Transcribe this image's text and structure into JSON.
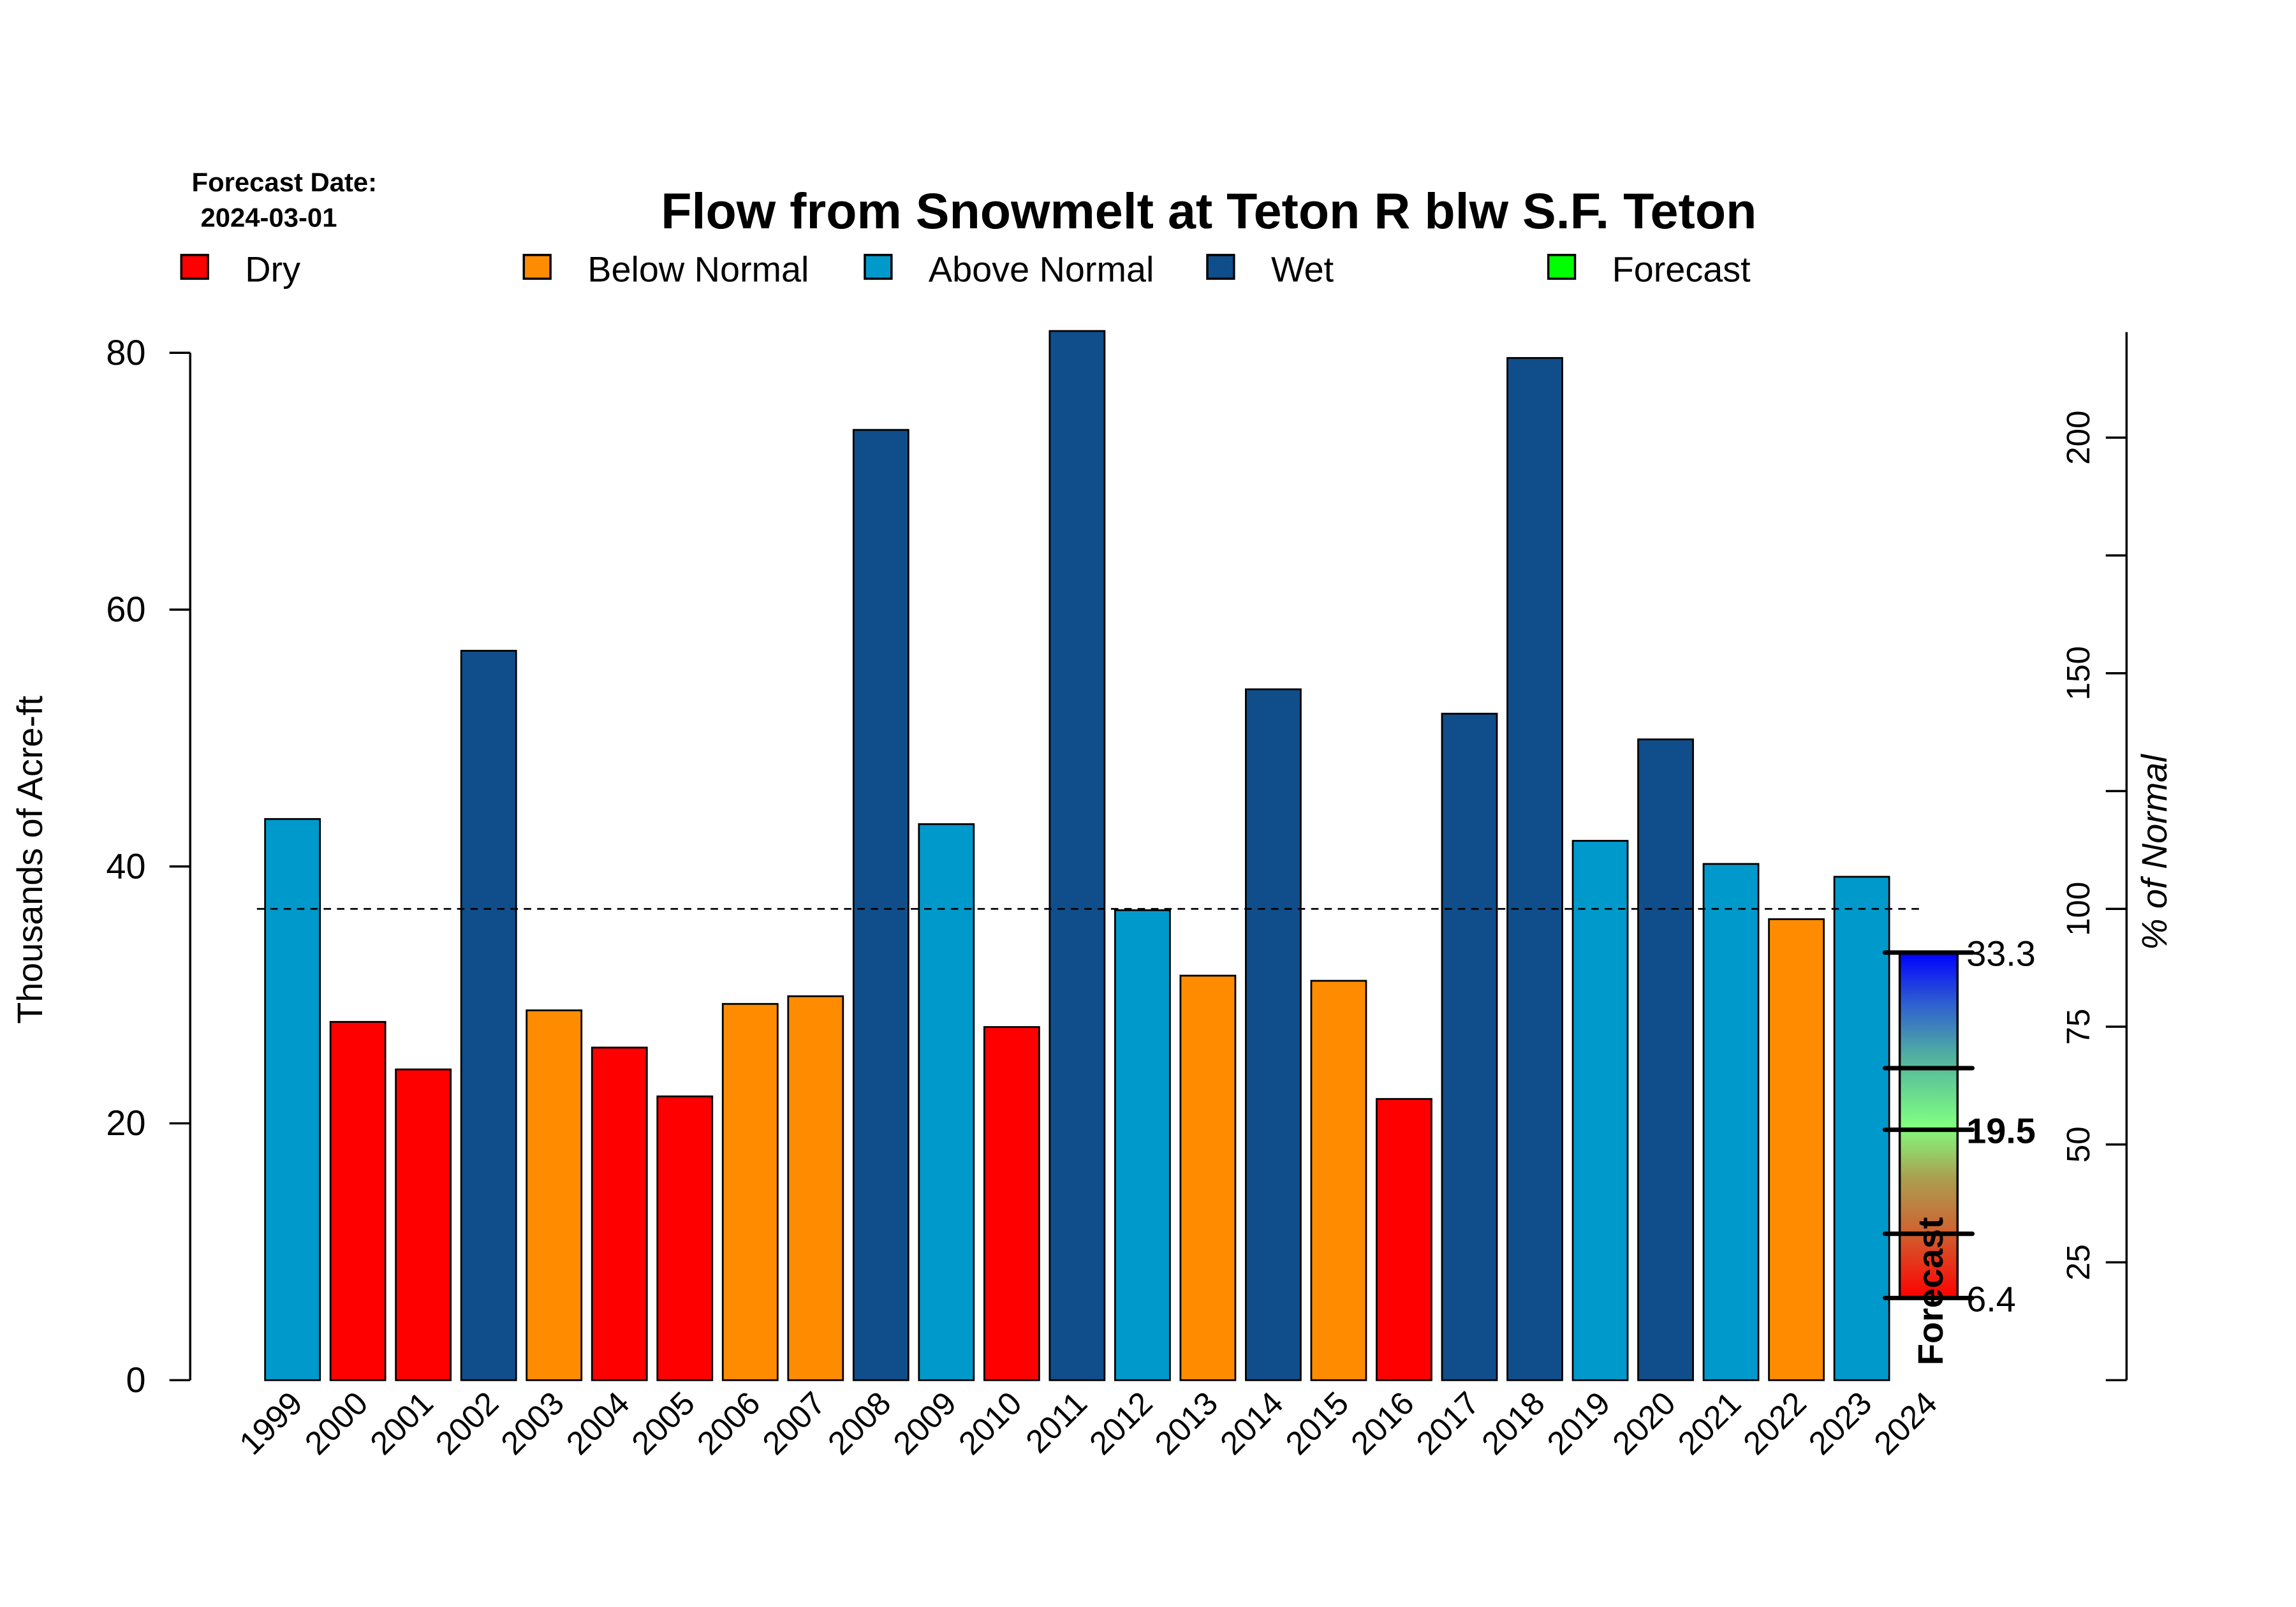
{
  "chart_data": {
    "type": "bar",
    "title": "Flow from Snowmelt at Teton R blw S.F. Teton",
    "forecast_date_label": "Forecast Date:",
    "forecast_date": "2024-03-01",
    "ylabel": "Thousands of Acre-ft",
    "y2label": "% of Normal",
    "ylim": [
      0,
      80
    ],
    "yticks": [
      "0",
      "20",
      "40",
      "60",
      "80"
    ],
    "y2ticks": [
      0,
      25,
      50,
      75,
      100,
      125,
      150,
      175,
      200
    ],
    "y2ticklabels": [
      "25",
      "50",
      "75",
      "100",
      "150",
      "200"
    ],
    "normal": 36.7,
    "legend": [
      {
        "label": "Dry",
        "color": "#ff0000"
      },
      {
        "label": "Below Normal",
        "color": "#ff8c00"
      },
      {
        "label": "Above Normal",
        "color": "#0099cc"
      },
      {
        "label": "Wet",
        "color": "#104e8b"
      },
      {
        "label": "Forecast",
        "color": "#00ff00"
      }
    ],
    "categories": [
      "1999",
      "2000",
      "2001",
      "2002",
      "2003",
      "2004",
      "2005",
      "2006",
      "2007",
      "2008",
      "2009",
      "2010",
      "2011",
      "2012",
      "2013",
      "2014",
      "2015",
      "2016",
      "2017",
      "2018",
      "2019",
      "2020",
      "2021",
      "2022",
      "2023",
      "2024"
    ],
    "values": [
      43.7,
      27.9,
      24.2,
      56.8,
      28.8,
      25.9,
      22.1,
      29.3,
      29.9,
      74.0,
      43.3,
      27.5,
      81.7,
      36.6,
      31.5,
      53.8,
      31.1,
      21.9,
      51.9,
      79.6,
      42.0,
      49.9,
      40.2,
      35.9,
      39.2,
      null
    ],
    "classes": [
      "Above Normal",
      "Dry",
      "Dry",
      "Wet",
      "Below Normal",
      "Dry",
      "Dry",
      "Below Normal",
      "Below Normal",
      "Wet",
      "Above Normal",
      "Dry",
      "Wet",
      "Above Normal",
      "Below Normal",
      "Wet",
      "Below Normal",
      "Dry",
      "Wet",
      "Wet",
      "Above Normal",
      "Wet",
      "Above Normal",
      "Below Normal",
      "Above Normal",
      null
    ],
    "forecast": {
      "label": "Forecast",
      "min": 6.4,
      "max": 33.3,
      "median": 19.5,
      "min_label": "6.4",
      "max_label": "33.3",
      "median_label": "19.5",
      "quantiles": [
        11.4,
        24.3
      ]
    }
  }
}
